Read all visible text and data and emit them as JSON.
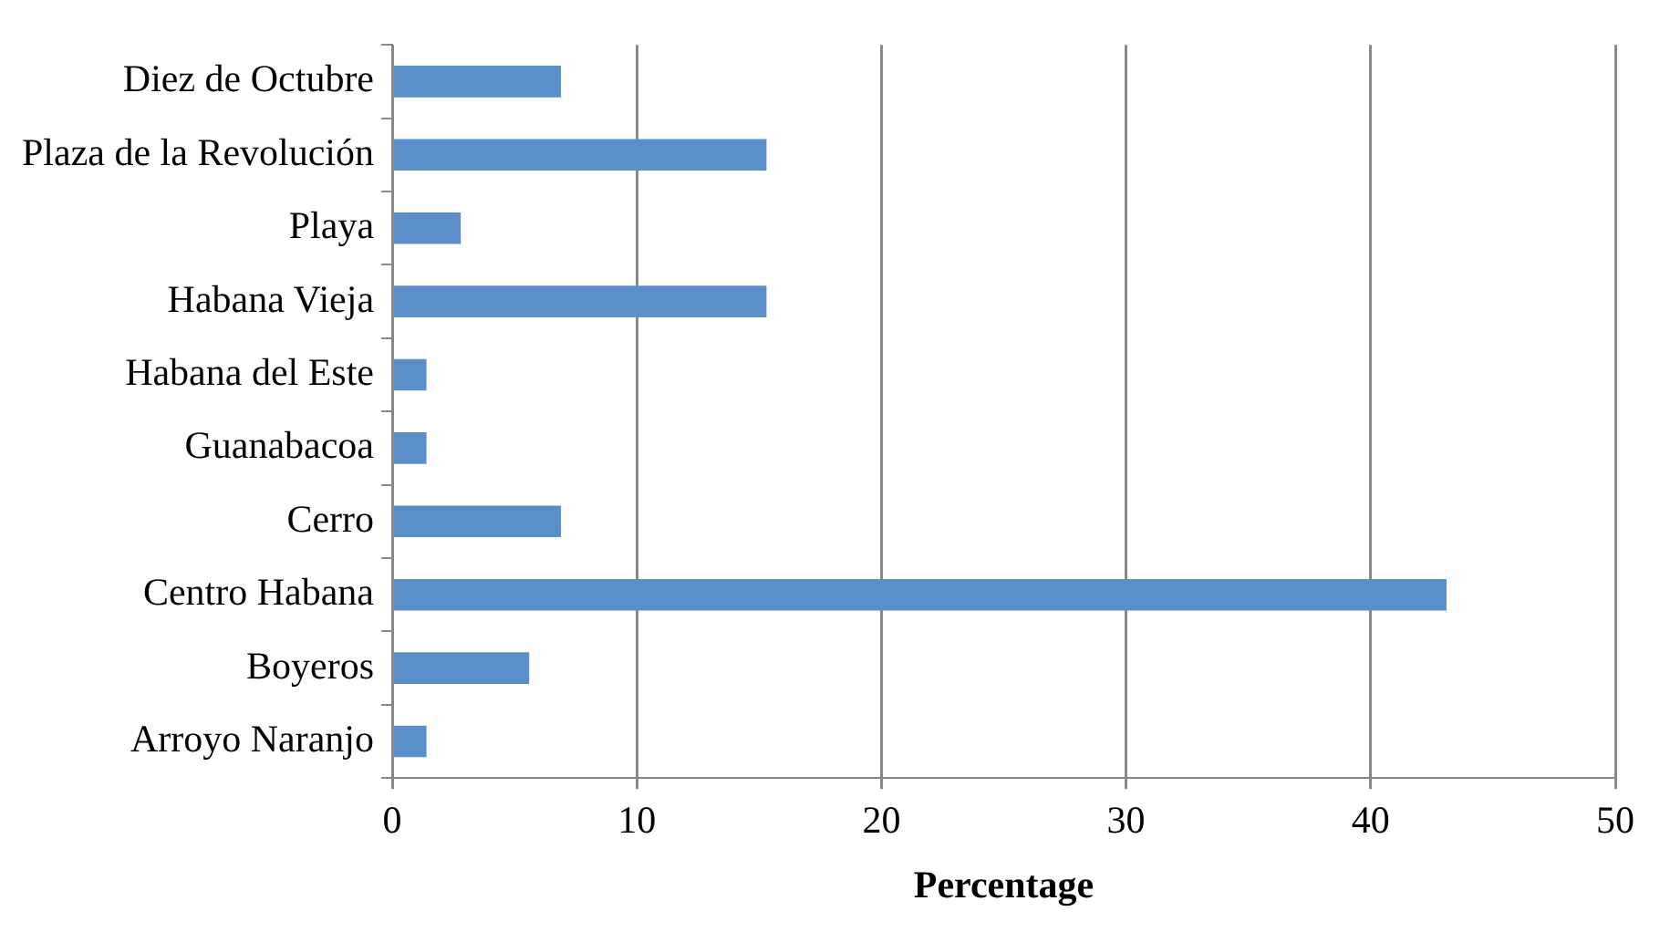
{
  "chart_data": {
    "type": "bar",
    "orientation": "horizontal",
    "xlabel": "Percentage",
    "categories": [
      "Diez de Octubre",
      "Plaza de la Revolución",
      "Playa",
      "Habana Vieja",
      "Habana del Este",
      "Guanabacoa",
      "Cerro",
      "Centro Habana",
      "Boyeros",
      "Arroyo Naranjo"
    ],
    "values": [
      6.9,
      15.3,
      2.8,
      15.3,
      1.4,
      1.4,
      6.9,
      43.1,
      5.6,
      1.4
    ],
    "color": "#5b8fc9",
    "xlim": [
      0,
      50
    ],
    "xticks": [
      0,
      10,
      20,
      30,
      40,
      50
    ],
    "grid": "x",
    "legend": false
  }
}
